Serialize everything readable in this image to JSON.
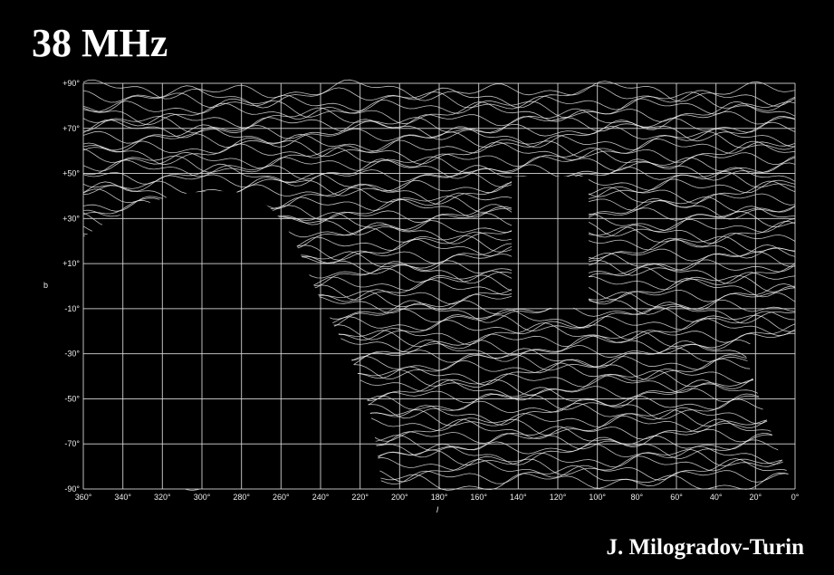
{
  "title": "38 MHz",
  "credit": "J. Milogradov-Turin",
  "axes": {
    "x_label": "l",
    "y_label": "b",
    "x_ticks": [
      "360°",
      "340°",
      "320°",
      "300°",
      "280°",
      "260°",
      "240°",
      "220°",
      "200°",
      "180°",
      "160°",
      "140°",
      "120°",
      "100°",
      "80°",
      "60°",
      "40°",
      "20°",
      "0°"
    ],
    "y_ticks": [
      "+90°",
      "+70°",
      "+50°",
      "+30°",
      "+10°",
      "-10°",
      "-30°",
      "-50°",
      "-70°",
      "-90°"
    ]
  }
}
